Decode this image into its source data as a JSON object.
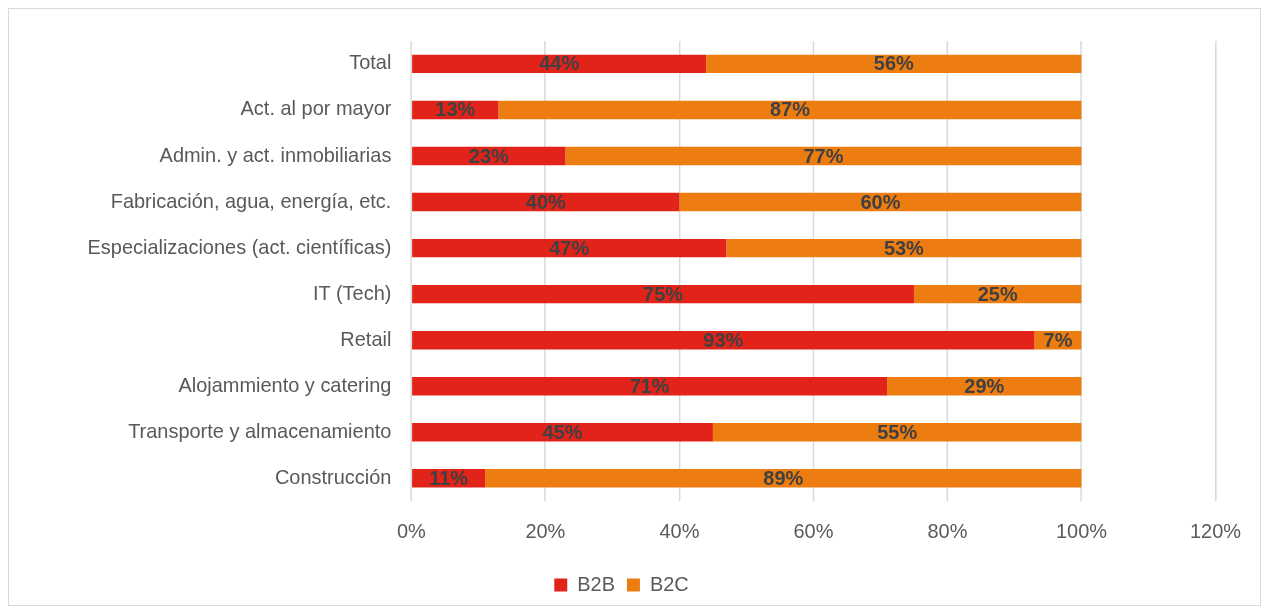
{
  "chart_data": {
    "type": "bar",
    "orientation": "horizontal",
    "stacked": true,
    "categories": [
      "Total",
      "Act. al por mayor",
      "Admin. y act. inmobiliarias",
      "Fabricación, agua, energía, etc.",
      "Especializaciones (act. científicas)",
      "IT (Tech)",
      "Retail",
      "Alojammiento y catering",
      "Transporte y almacenamiento",
      "Construcción"
    ],
    "series": [
      {
        "name": "B2B",
        "color": "#e2231a",
        "values": [
          44,
          13,
          23,
          40,
          47,
          75,
          93,
          71,
          45,
          11
        ],
        "value_labels": [
          "44%",
          "13%",
          "23%",
          "40%",
          "47%",
          "75%",
          "93%",
          "71%",
          "45%",
          "11%"
        ]
      },
      {
        "name": "B2C",
        "color": "#ee7d11",
        "values": [
          56,
          87,
          77,
          60,
          53,
          25,
          7,
          29,
          55,
          89
        ],
        "value_labels": [
          "56%",
          "87%",
          "77%",
          "60%",
          "53%",
          "25%",
          "7%",
          "29%",
          "55%",
          "89%"
        ]
      }
    ],
    "xlim": [
      0,
      120
    ],
    "xticks": [
      {
        "value": 0,
        "label": "0%"
      },
      {
        "value": 20,
        "label": "20%"
      },
      {
        "value": 40,
        "label": "40%"
      },
      {
        "value": 60,
        "label": "60%"
      },
      {
        "value": 80,
        "label": "80%"
      },
      {
        "value": 100,
        "label": "100%"
      },
      {
        "value": 120,
        "label": "120%"
      }
    ],
    "grid": "x",
    "legend": "bottom"
  }
}
